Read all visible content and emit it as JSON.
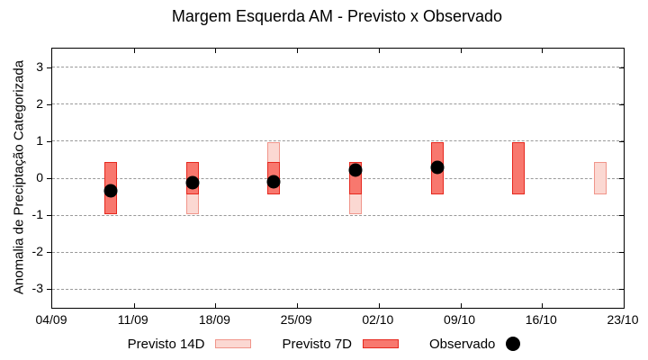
{
  "title": "Margem Esquerda AM - Previsto x Observado",
  "y_axis": {
    "label": "Anomalia de Preciptação Categorizada",
    "ticks": [
      3,
      2,
      1,
      0,
      -1,
      -2,
      -3
    ],
    "min": -3.5,
    "max": 3.5
  },
  "x_axis": {
    "tick_labels": [
      "04/09",
      "11/09",
      "18/09",
      "25/09",
      "02/10",
      "09/10",
      "16/10",
      "23/10"
    ],
    "tick_days": [
      0,
      7,
      14,
      21,
      28,
      35,
      42,
      49
    ],
    "span_days": 49
  },
  "legend": [
    {
      "label": "Previsto 14D",
      "type": "box"
    },
    {
      "label": "Previsto 7D",
      "type": "box"
    },
    {
      "label": "Observado",
      "type": "dot"
    }
  ],
  "colors": {
    "previsto_14d_fill": "#fbd8d2",
    "previsto_14d_border": "#f0958a",
    "previsto_7d_fill": "#f8786e",
    "previsto_7d_border": "#e6281e",
    "observado": "#000000",
    "gridline": "#999999",
    "axis": "#000000"
  },
  "chart_data": {
    "type": "bar",
    "subtype": "interval-forecast-bars-with-observed-scatter",
    "title": "Margem Esquerda AM - Previsto x Observado",
    "xlabel": "",
    "ylabel": "Anomalia de Preciptação Categorizada",
    "ylim": [
      -3.5,
      3.5
    ],
    "x_tick_labels": [
      "04/09",
      "11/09",
      "18/09",
      "25/09",
      "02/10",
      "09/10",
      "16/10",
      "23/10"
    ],
    "grid": true,
    "legend_position": "below",
    "bars": [
      {
        "date": "09/09",
        "day": 5,
        "previsto_7d": [
          -0.97,
          0.43
        ],
        "previsto_14d": null,
        "observado": -0.33
      },
      {
        "date": "16/09",
        "day": 12,
        "previsto_7d": [
          -0.43,
          0.43
        ],
        "previsto_14d": [
          -0.97,
          0.43
        ],
        "observado": -0.12
      },
      {
        "date": "23/09",
        "day": 19,
        "previsto_7d": [
          -0.43,
          0.43
        ],
        "previsto_14d": [
          -0.43,
          0.97
        ],
        "observado": -0.1
      },
      {
        "date": "30/09",
        "day": 26,
        "previsto_7d": [
          -0.43,
          0.43
        ],
        "previsto_14d": [
          -0.97,
          0.43
        ],
        "observado": 0.22
      },
      {
        "date": "07/10",
        "day": 33,
        "previsto_7d": [
          -0.43,
          0.97
        ],
        "previsto_14d": null,
        "observado": 0.3
      },
      {
        "date": "14/10",
        "day": 40,
        "previsto_7d": [
          -0.43,
          0.97
        ],
        "previsto_14d": null,
        "observado": null
      },
      {
        "date": "21/10",
        "day": 47,
        "previsto_7d": null,
        "previsto_14d": [
          -0.43,
          0.43
        ],
        "observado": null
      }
    ]
  }
}
